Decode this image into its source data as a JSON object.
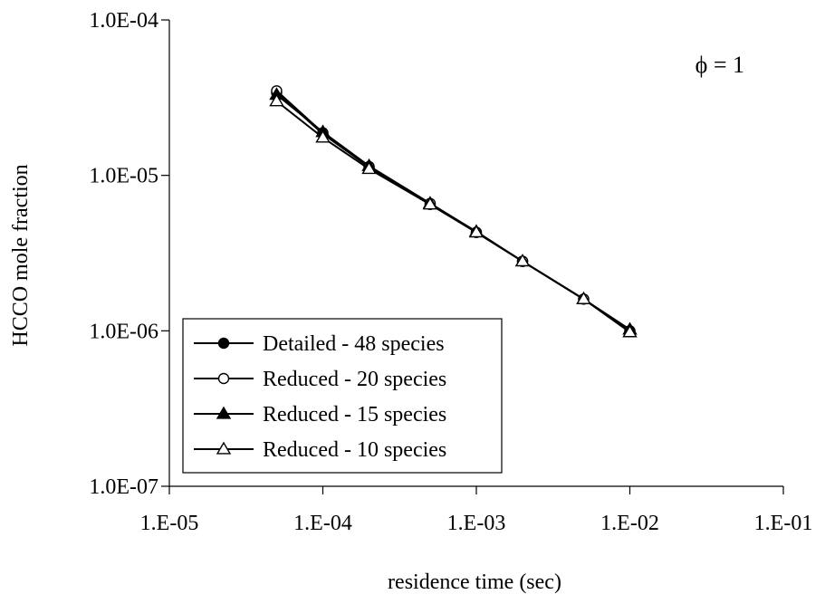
{
  "chart_data": {
    "type": "line",
    "xlabel": "residence time (sec)",
    "ylabel": "HCCO mole fraction",
    "x_scale": "log",
    "y_scale": "log",
    "xlim": [
      1e-05,
      0.1
    ],
    "ylim": [
      1e-07,
      0.0001
    ],
    "x_ticks": [
      {
        "value": 1e-05,
        "label": "1.E-05"
      },
      {
        "value": 0.0001,
        "label": "1.E-04"
      },
      {
        "value": 0.001,
        "label": "1.E-03"
      },
      {
        "value": 0.01,
        "label": "1.E-02"
      },
      {
        "value": 0.1,
        "label": "1.E-01"
      }
    ],
    "y_ticks": [
      {
        "value": 1e-07,
        "label": "1.0E-07"
      },
      {
        "value": 1e-06,
        "label": "1.0E-06"
      },
      {
        "value": 1e-05,
        "label": "1.0E-05"
      },
      {
        "value": 0.0001,
        "label": "1.0E-04"
      }
    ],
    "grid": false,
    "legend_position": "bottom-left",
    "annotation": {
      "text": "ϕ = 1",
      "position": "top-right"
    },
    "x": [
      5e-05,
      0.0001,
      0.0002,
      0.0005,
      0.001,
      0.002,
      0.005,
      0.01
    ],
    "series": [
      {
        "name": "Detailed - 48 species",
        "marker": "filled-circle",
        "values": [
          3.4e-05,
          1.85e-05,
          1.13e-05,
          6.5e-06,
          4.3e-06,
          2.8e-06,
          1.6e-06,
          1e-06
        ]
      },
      {
        "name": "Reduced - 20 species",
        "marker": "open-circle",
        "values": [
          3.5e-05,
          1.88e-05,
          1.14e-05,
          6.6e-06,
          4.3e-06,
          2.8e-06,
          1.6e-06,
          1e-06
        ]
      },
      {
        "name": "Reduced - 15 species",
        "marker": "filled-triangle",
        "values": [
          3.3e-05,
          1.9e-05,
          1.15e-05,
          6.6e-06,
          4.35e-06,
          2.8e-06,
          1.6e-06,
          1.02e-06
        ]
      },
      {
        "name": "Reduced - 10 species",
        "marker": "open-triangle",
        "values": [
          3e-05,
          1.75e-05,
          1.1e-05,
          6.5e-06,
          4.3e-06,
          2.8e-06,
          1.6e-06,
          9.8e-07
        ]
      }
    ]
  }
}
